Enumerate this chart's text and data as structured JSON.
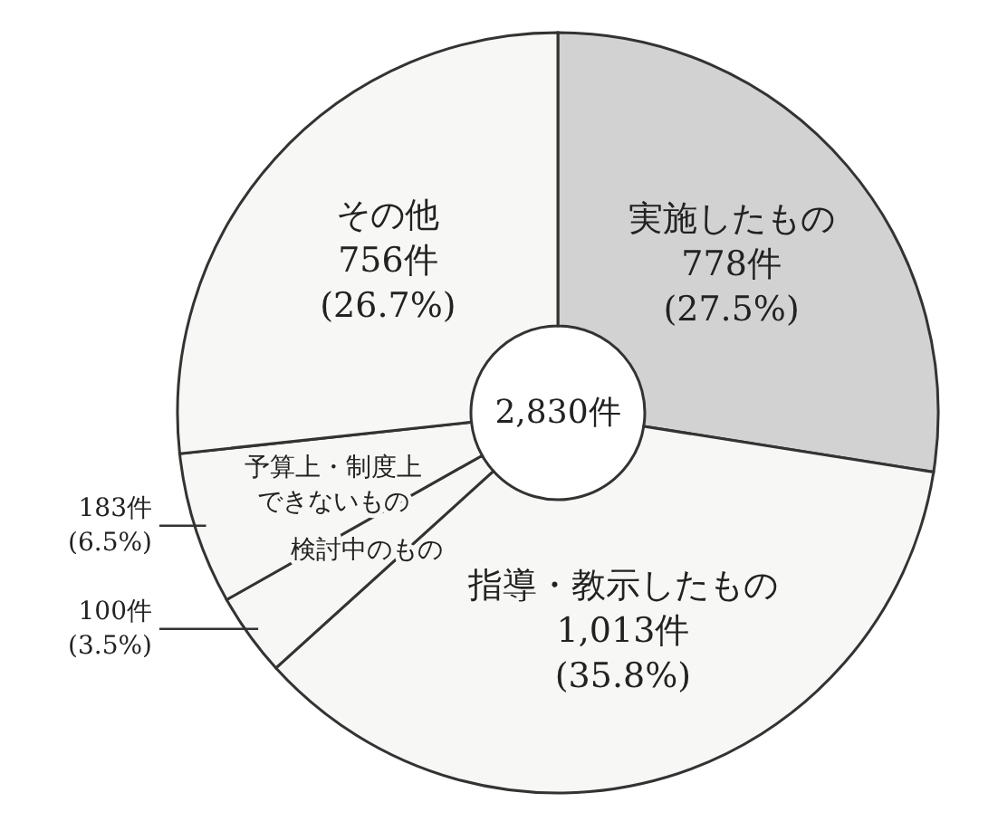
{
  "chart_data": {
    "type": "donut",
    "categories": [
      "実施したもの",
      "指導・教示したもの",
      "検討中のもの",
      "予算上・制度上できないもの",
      "その他"
    ],
    "values": [
      778,
      1013,
      100,
      183,
      756
    ],
    "value_labels": [
      "778件 (27.5%)",
      "1,013件 (35.8%)",
      "100件 (3.5%)",
      "183件 (6.5%)",
      "756件 (26.7%)"
    ],
    "colors": [
      "#d2d2d2",
      "#f7f7f5",
      "#f7f7f5",
      "#f7f7f5",
      "#f7f7f5"
    ],
    "annotations": [
      "2,830件"
    ]
  }
}
